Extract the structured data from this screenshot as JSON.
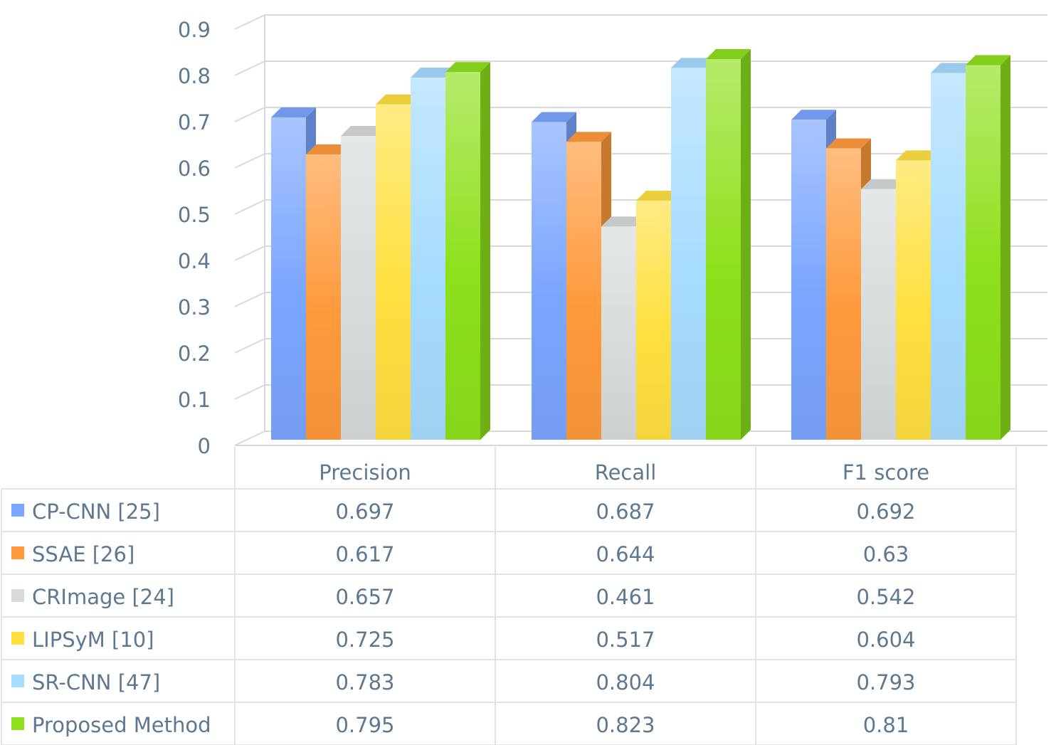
{
  "chart_data": {
    "type": "bar",
    "title": "",
    "xlabel": "",
    "ylabel": "",
    "ylim": [
      0,
      0.9
    ],
    "yticks": [
      "0",
      "0.1",
      "0.2",
      "0.3",
      "0.4",
      "0.5",
      "0.6",
      "0.7",
      "0.8",
      "0.9"
    ],
    "categories": [
      "Precision",
      "Recall",
      "F1 score"
    ],
    "grid": true,
    "legend_placement": "data table below chart",
    "series": [
      {
        "name": "CP-CNN [25]",
        "values": [
          0.697,
          0.687,
          0.692
        ],
        "labels": [
          "0.697",
          "0.687",
          "0.692"
        ],
        "color": "#7aa6ff"
      },
      {
        "name": "SSAE [26]",
        "values": [
          0.617,
          0.644,
          0.63
        ],
        "labels": [
          "0.617",
          "0.644",
          "0.63"
        ],
        "color": "#ff9a3c"
      },
      {
        "name": "CRImage [24]",
        "values": [
          0.657,
          0.461,
          0.542
        ],
        "labels": [
          "0.657",
          "0.461",
          "0.542"
        ],
        "color": "#d7dbdb"
      },
      {
        "name": "LIPSyM [10]",
        "values": [
          0.725,
          0.517,
          0.604
        ],
        "labels": [
          "0.725",
          "0.517",
          "0.604"
        ],
        "color": "#ffe040"
      },
      {
        "name": "SR-CNN [47]",
        "values": [
          0.783,
          0.804,
          0.793
        ],
        "labels": [
          "0.783",
          "0.804",
          "0.793"
        ],
        "color": "#a6dcff"
      },
      {
        "name": "Proposed Method",
        "values": [
          0.795,
          0.823,
          0.81
        ],
        "labels": [
          "0.795",
          "0.823",
          "0.81"
        ],
        "color": "#8ee01c"
      }
    ]
  }
}
